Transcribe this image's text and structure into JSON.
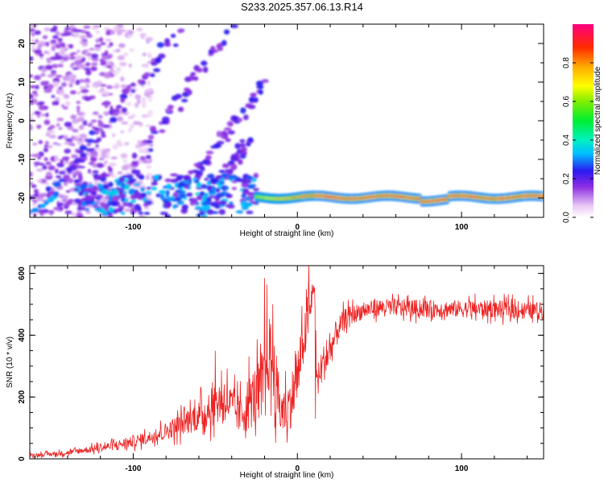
{
  "title": "S233.2025.357.06.13.R14",
  "chart_data": [
    {
      "type": "heatmap",
      "xlabel": "Height of straight line (km)",
      "ylabel": "Frequency (Hz)",
      "xlim": [
        -163,
        150
      ],
      "ylim": [
        -25,
        25
      ],
      "xticks": [
        "-100",
        "0",
        "100"
      ],
      "yticks": [
        "20",
        "10",
        "0",
        "-10",
        "-20"
      ],
      "colorbar": {
        "label": "Normalized spectral amplitude",
        "ticks": [
          "0.0",
          "0.2",
          "0.4",
          "0.6",
          "0.8"
        ],
        "range": [
          0,
          1
        ]
      },
      "features": [
        {
          "kind": "band",
          "x": [
            -25,
            150
          ],
          "y": -19.8,
          "peak_amplitude": 0.95
        },
        {
          "kind": "diagonal",
          "from": [
            -160,
            -24
          ],
          "to": [
            -70,
            24
          ]
        },
        {
          "kind": "diagonal",
          "from": [
            -120,
            -24
          ],
          "to": [
            -40,
            24
          ]
        },
        {
          "kind": "diagonal",
          "from": [
            -80,
            -24
          ],
          "to": [
            -20,
            10
          ]
        },
        {
          "kind": "diagonal",
          "from": [
            -60,
            -24
          ],
          "to": [
            -30,
            -5
          ]
        }
      ]
    },
    {
      "type": "line",
      "xlabel": "Height of straight line (km)",
      "ylabel": "SNR (10 * v/v)",
      "xlim": [
        -163,
        150
      ],
      "ylim": [
        0,
        625
      ],
      "xticks": [
        "-100",
        "0",
        "100"
      ],
      "yticks": [
        "600",
        "400",
        "200",
        "0"
      ],
      "series": [
        {
          "color": "#ee2222",
          "x": [
            -163,
            -150,
            -140,
            -130,
            -120,
            -110,
            -100,
            -90,
            -80,
            -70,
            -60,
            -50,
            -45,
            -40,
            -35,
            -30,
            -25,
            -20,
            -18,
            -15,
            -10,
            -5,
            0,
            5,
            8,
            10,
            12,
            15,
            20,
            25,
            30,
            40,
            50,
            60,
            80,
            100,
            120,
            140,
            150
          ],
          "y": [
            12,
            15,
            20,
            28,
            35,
            45,
            55,
            70,
            90,
            115,
            140,
            170,
            200,
            170,
            140,
            180,
            210,
            250,
            350,
            300,
            150,
            170,
            260,
            420,
            480,
            590,
            250,
            300,
            350,
            420,
            460,
            480,
            490,
            490,
            485,
            485,
            485,
            480,
            480
          ],
          "noise": [
            8,
            10,
            12,
            15,
            18,
            22,
            25,
            30,
            40,
            55,
            70,
            90,
            110,
            90,
            90,
            130,
            140,
            170,
            200,
            180,
            110,
            120,
            140,
            100,
            90,
            70,
            60,
            90,
            80,
            60,
            45,
            40,
            40,
            40,
            40,
            40,
            40,
            40,
            40
          ],
          "peaks": [
            {
              "x": -50,
              "y": 350
            },
            {
              "x": -20,
              "y": 585
            },
            {
              "x": -15,
              "y": 500
            },
            {
              "x": 7,
              "y": 625
            },
            {
              "x": 10,
              "y": 560
            },
            {
              "x": 11,
              "y": 130
            }
          ]
        }
      ]
    }
  ]
}
